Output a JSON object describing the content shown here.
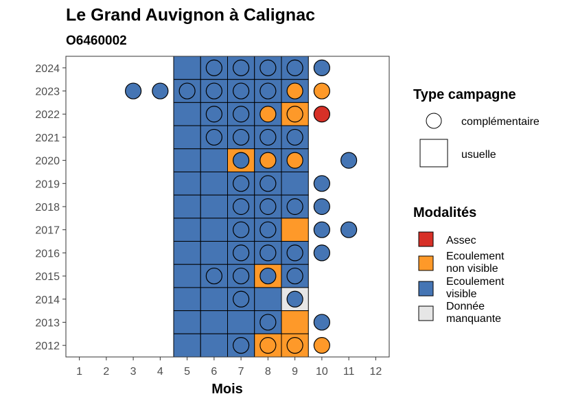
{
  "chart_data": {
    "type": "heatmap",
    "title": "Le Grand Auvignon à Calignac",
    "subtitle": "O6460002",
    "xlabel": "Mois",
    "ylabel": "",
    "x_ticks": [
      "1",
      "2",
      "3",
      "4",
      "5",
      "6",
      "7",
      "8",
      "9",
      "10",
      "11",
      "12"
    ],
    "y_ticks": [
      "2012",
      "2013",
      "2014",
      "2015",
      "2016",
      "2017",
      "2018",
      "2019",
      "2020",
      "2021",
      "2022",
      "2023",
      "2024"
    ],
    "xlim": [
      0.5,
      12.5
    ],
    "ylim": [
      2011.5,
      2024.5
    ],
    "grid": false,
    "colors": {
      "assec": "#d73027",
      "non_visible": "#fe9929",
      "visible": "#4575b4",
      "manquante": "#e6e6e6"
    },
    "legend_type": {
      "title": "Type campagne",
      "items": [
        "complémentaire",
        "usuelle"
      ]
    },
    "legend_modalites": {
      "title": "Modalités",
      "items": [
        {
          "key": "assec",
          "line1": "Assec",
          "line2": ""
        },
        {
          "key": "non_visible",
          "line1": "Ecoulement",
          "line2": "non visible"
        },
        {
          "key": "visible",
          "line1": "Ecoulement",
          "line2": "visible"
        },
        {
          "key": "manquante",
          "line1": "Donnée",
          "line2": "manquante"
        }
      ]
    },
    "usuelle": [
      {
        "year": 2024,
        "months": {
          "5": "visible",
          "6": "visible",
          "7": "visible",
          "8": "visible",
          "9": "visible"
        }
      },
      {
        "year": 2023,
        "months": {
          "5": "visible",
          "6": "visible",
          "7": "visible",
          "8": "visible",
          "9": "visible"
        }
      },
      {
        "year": 2022,
        "months": {
          "5": "visible",
          "6": "visible",
          "7": "visible",
          "8": "visible",
          "9": "non_visible"
        }
      },
      {
        "year": 2021,
        "months": {
          "5": "visible",
          "6": "visible",
          "7": "visible",
          "8": "visible",
          "9": "visible"
        }
      },
      {
        "year": 2020,
        "months": {
          "5": "visible",
          "6": "visible",
          "7": "non_visible",
          "8": "visible",
          "9": "visible"
        }
      },
      {
        "year": 2019,
        "months": {
          "5": "visible",
          "6": "visible",
          "7": "visible",
          "8": "visible",
          "9": "visible"
        }
      },
      {
        "year": 2018,
        "months": {
          "5": "visible",
          "6": "visible",
          "7": "visible",
          "8": "visible",
          "9": "visible"
        }
      },
      {
        "year": 2017,
        "months": {
          "5": "visible",
          "6": "visible",
          "7": "visible",
          "8": "visible",
          "9": "non_visible"
        }
      },
      {
        "year": 2016,
        "months": {
          "5": "visible",
          "6": "visible",
          "7": "visible",
          "8": "visible",
          "9": "visible"
        }
      },
      {
        "year": 2015,
        "months": {
          "5": "visible",
          "6": "visible",
          "7": "visible",
          "8": "non_visible",
          "9": "visible"
        }
      },
      {
        "year": 2014,
        "months": {
          "5": "visible",
          "6": "visible",
          "7": "visible",
          "8": "visible",
          "9": "manquante"
        }
      },
      {
        "year": 2013,
        "months": {
          "5": "visible",
          "6": "visible",
          "7": "visible",
          "8": "visible",
          "9": "non_visible"
        }
      },
      {
        "year": 2012,
        "months": {
          "5": "visible",
          "6": "visible",
          "7": "visible",
          "8": "non_visible",
          "9": "non_visible"
        }
      }
    ],
    "complementaire": [
      {
        "year": 2024,
        "months": {
          "6": "visible",
          "7": "visible",
          "8": "visible",
          "9": "visible",
          "10": "visible"
        }
      },
      {
        "year": 2023,
        "months": {
          "3": "visible",
          "4": "visible",
          "5": "visible",
          "6": "visible",
          "7": "visible",
          "8": "visible",
          "9": "non_visible",
          "10": "non_visible"
        }
      },
      {
        "year": 2022,
        "months": {
          "6": "visible",
          "7": "visible",
          "8": "non_visible",
          "9": "non_visible",
          "10": "assec"
        }
      },
      {
        "year": 2021,
        "months": {
          "6": "visible",
          "7": "visible",
          "8": "visible",
          "9": "visible"
        }
      },
      {
        "year": 2020,
        "months": {
          "7": "visible",
          "8": "non_visible",
          "9": "non_visible",
          "11": "visible"
        }
      },
      {
        "year": 2019,
        "months": {
          "7": "visible",
          "8": "visible",
          "10": "visible"
        }
      },
      {
        "year": 2018,
        "months": {
          "7": "visible",
          "8": "visible",
          "9": "visible",
          "10": "visible"
        }
      },
      {
        "year": 2017,
        "months": {
          "7": "visible",
          "8": "visible",
          "10": "visible",
          "11": "visible"
        }
      },
      {
        "year": 2016,
        "months": {
          "7": "visible",
          "8": "visible",
          "9": "visible",
          "10": "visible"
        }
      },
      {
        "year": 2015,
        "months": {
          "6": "visible",
          "7": "visible",
          "8": "visible",
          "9": "visible"
        }
      },
      {
        "year": 2014,
        "months": {
          "7": "visible",
          "9": "visible"
        }
      },
      {
        "year": 2013,
        "months": {
          "8": "visible",
          "10": "visible"
        }
      },
      {
        "year": 2012,
        "months": {
          "7": "visible",
          "8": "non_visible",
          "9": "non_visible",
          "10": "non_visible"
        }
      }
    ]
  }
}
